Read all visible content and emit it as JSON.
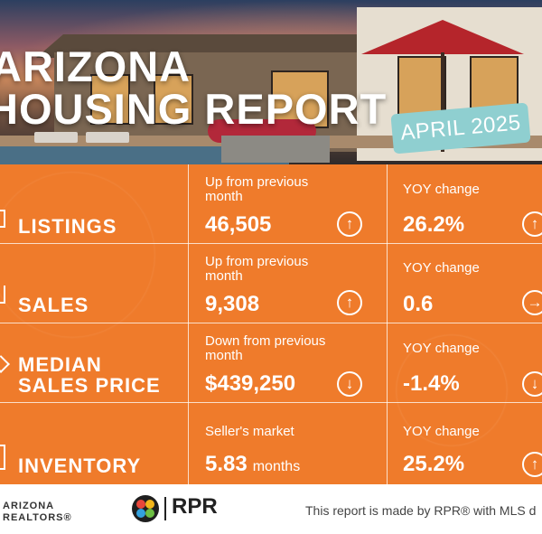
{
  "header": {
    "title_line1": "ARIZONA",
    "title_line2": "HOUSING REPORT",
    "date": "APRIL 2025"
  },
  "metrics": [
    {
      "label": "LISTINGS",
      "monthly_note": "Up from previous month",
      "value": "46,505",
      "unit": "",
      "monthly_arrow": "↑",
      "yoy_note": "YOY change",
      "yoy_value": "26.2%",
      "yoy_arrow": "↑"
    },
    {
      "label": "SALES",
      "monthly_note": "Up from previous month",
      "value": "9,308",
      "unit": "",
      "monthly_arrow": "↑",
      "yoy_note": "YOY change",
      "yoy_value": "0.6",
      "yoy_arrow": "→"
    },
    {
      "label_line1": "MEDIAN",
      "label_line2": "SALES PRICE",
      "monthly_note": "Down from previous month",
      "value": "$439,250",
      "unit": "",
      "monthly_arrow": "↓",
      "yoy_note": "YOY change",
      "yoy_value": "-1.4%",
      "yoy_arrow": "↓"
    },
    {
      "label": "INVENTORY",
      "monthly_note": "Seller's market",
      "value": "5.83",
      "unit": "months",
      "yoy_note": "YOY change",
      "yoy_value": "25.2%",
      "yoy_arrow": "↑"
    }
  ],
  "footer": {
    "partner_line1": "ARIZONA",
    "partner_line2": "REALTORS",
    "partner_mark": "®",
    "brand": "RPR",
    "note": "This report is made by RPR® with MLS d"
  },
  "colors": {
    "background": "#ef7b2b",
    "badge": "#8fcfd0",
    "text": "#ffffff"
  }
}
